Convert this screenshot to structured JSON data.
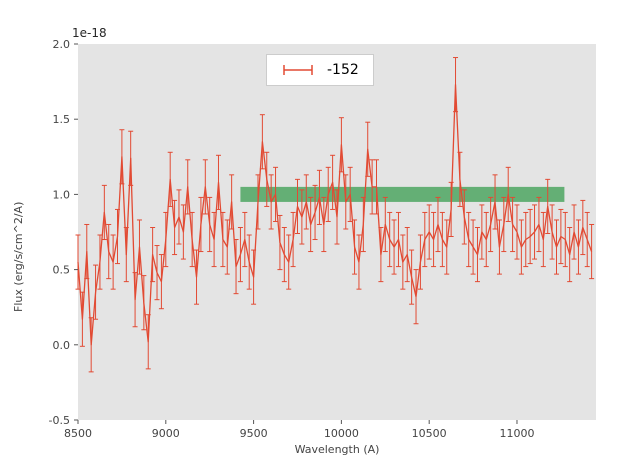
{
  "figure": {
    "background": "#ffffff"
  },
  "chart_data": {
    "type": "line",
    "title": "",
    "xlabel": "Wavelength (A)",
    "ylabel": "Flux (erg/s/cm^2/A)",
    "offset_label": "1e-18",
    "xlim": [
      8500,
      11450
    ],
    "ylim": [
      -0.5,
      2.0
    ],
    "xticks": [
      8500,
      9000,
      9500,
      10000,
      10500,
      11000
    ],
    "xticklabels": [
      "8500",
      "9000",
      "9500",
      "10000",
      "10500",
      "11000"
    ],
    "yticks": [
      -0.5,
      0.0,
      0.5,
      1.0,
      1.5,
      2.0
    ],
    "yticklabels": [
      "-0.5",
      "0.0",
      "0.5",
      "1.0",
      "1.5",
      "2.0"
    ],
    "grid": false,
    "plot_background": "#e4e4e4",
    "tick_color": "#555555",
    "label_color": "#444444",
    "legend": {
      "label": "-152",
      "position": "upper center"
    },
    "band": {
      "x0": 9425,
      "x1": 11270,
      "y0": 0.95,
      "y1": 1.05,
      "color": "#55a868",
      "opacity": 0.9
    },
    "series": [
      {
        "name": "-152",
        "color": "#e24a33",
        "marker": "errorbar",
        "yerr": 0.18,
        "x": [
          8500,
          8525,
          8550,
          8575,
          8600,
          8625,
          8650,
          8675,
          8700,
          8725,
          8750,
          8775,
          8800,
          8825,
          8850,
          8875,
          8900,
          8925,
          8950,
          8975,
          9000,
          9025,
          9050,
          9075,
          9100,
          9125,
          9150,
          9175,
          9200,
          9225,
          9250,
          9275,
          9300,
          9325,
          9350,
          9375,
          9400,
          9425,
          9450,
          9475,
          9500,
          9525,
          9550,
          9575,
          9600,
          9625,
          9650,
          9675,
          9700,
          9725,
          9750,
          9775,
          9800,
          9825,
          9850,
          9875,
          9900,
          9925,
          9950,
          9975,
          10000,
          10025,
          10050,
          10075,
          10100,
          10125,
          10150,
          10175,
          10200,
          10225,
          10250,
          10275,
          10300,
          10325,
          10350,
          10375,
          10400,
          10425,
          10450,
          10475,
          10500,
          10525,
          10550,
          10575,
          10600,
          10625,
          10650,
          10675,
          10700,
          10725,
          10750,
          10775,
          10800,
          10825,
          10850,
          10875,
          10900,
          10925,
          10950,
          10975,
          11000,
          11025,
          11050,
          11075,
          11100,
          11125,
          11150,
          11175,
          11200,
          11225,
          11250,
          11275,
          11300,
          11325,
          11350,
          11375,
          11400,
          11425
        ],
        "y": [
          0.55,
          0.17,
          0.62,
          0.0,
          0.35,
          0.55,
          0.88,
          0.62,
          0.55,
          0.72,
          1.25,
          0.6,
          1.24,
          0.3,
          0.65,
          0.28,
          0.02,
          0.6,
          0.48,
          0.42,
          0.7,
          1.1,
          0.78,
          0.85,
          0.75,
          1.05,
          0.7,
          0.45,
          0.8,
          1.05,
          0.8,
          0.7,
          1.08,
          0.7,
          0.65,
          0.95,
          0.52,
          0.6,
          0.7,
          0.55,
          0.45,
          0.95,
          1.35,
          1.1,
          0.95,
          1.0,
          0.68,
          0.6,
          0.55,
          0.7,
          0.92,
          0.85,
          0.95,
          0.8,
          0.88,
          0.98,
          0.8,
          1.0,
          1.08,
          0.85,
          1.33,
          0.95,
          1.0,
          0.65,
          0.55,
          0.8,
          1.3,
          1.05,
          1.05,
          0.6,
          0.8,
          0.7,
          0.65,
          0.7,
          0.55,
          0.6,
          0.45,
          0.32,
          0.55,
          0.7,
          0.75,
          0.7,
          0.8,
          0.7,
          0.65,
          0.9,
          1.73,
          1.1,
          0.85,
          0.7,
          0.65,
          0.6,
          0.75,
          0.7,
          0.8,
          0.95,
          0.65,
          0.8,
          1.0,
          0.8,
          0.75,
          0.65,
          0.7,
          0.72,
          0.75,
          0.8,
          0.7,
          0.92,
          0.75,
          0.65,
          0.72,
          0.7,
          0.6,
          0.75,
          0.65,
          0.78,
          0.7,
          0.62
        ]
      }
    ]
  }
}
